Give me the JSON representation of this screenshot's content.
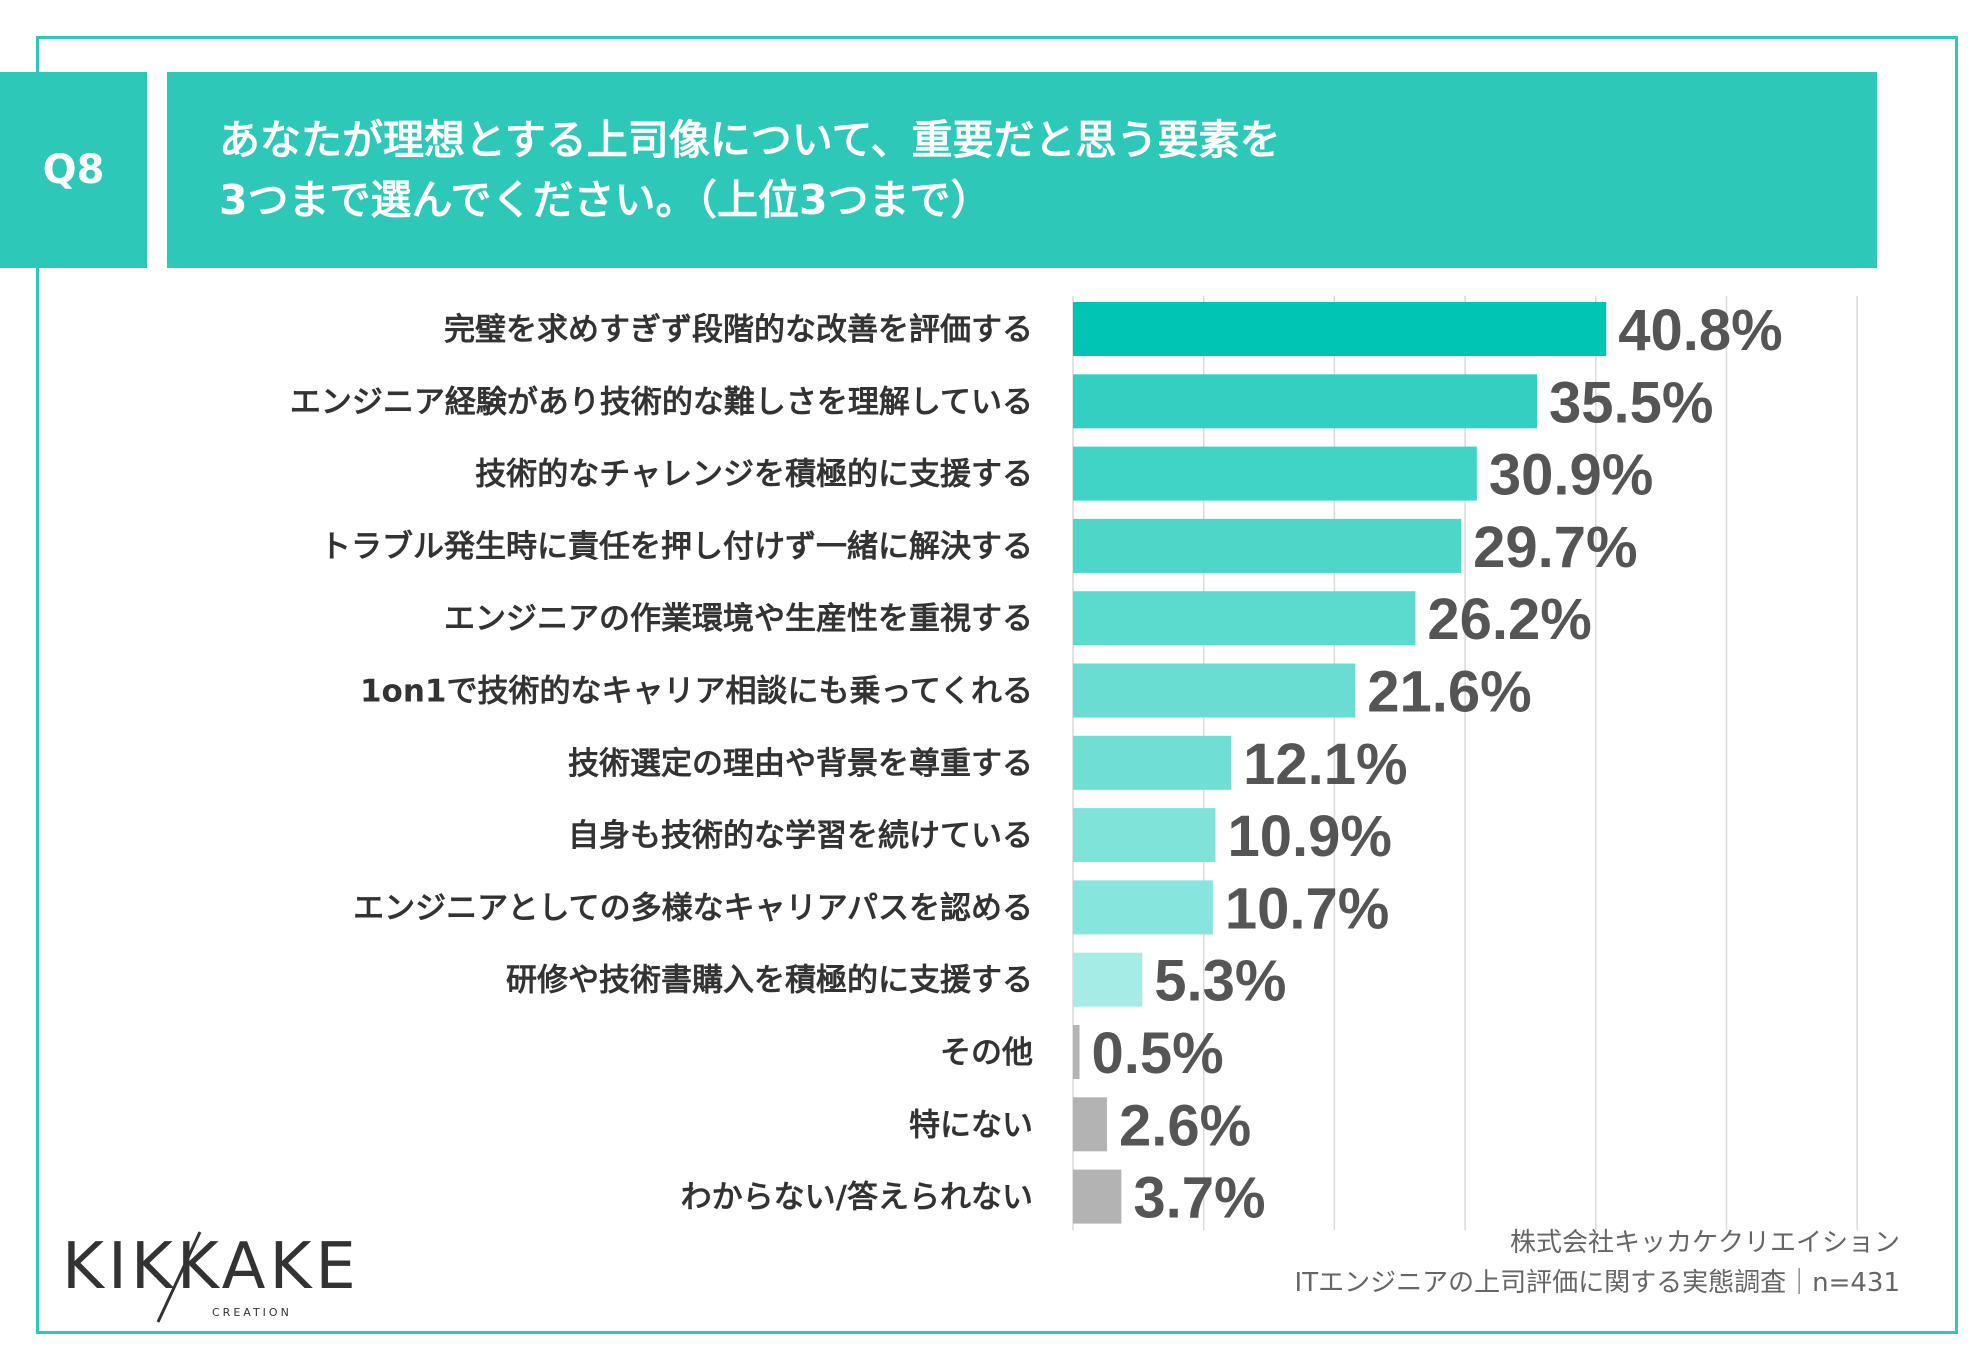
{
  "question": {
    "label": "Q8",
    "title_line1": "あなたが理想とする上司像について、重要だと思う要素を",
    "title_line2": "3つまで選んでください。（上位3つまで）"
  },
  "logo": {
    "text": "KIKKAKE",
    "sub": "CREATION"
  },
  "credit": {
    "company": "株式会社キッカケクリエイション",
    "survey": "ITエンジニアの上司評価に関する実態調査｜n=431"
  },
  "chart_data": {
    "type": "bar",
    "orientation": "horizontal",
    "title": "あなたが理想とする上司像について、重要だと思う要素を3つまで選んでください。（上位3つまで）",
    "unit": "%",
    "xlim": [
      0,
      60
    ],
    "grid": true,
    "categories": [
      "完璧を求めすぎず段階的な改善を評価する",
      "エンジニア経験があり技術的な難しさを理解している",
      "技術的なチャレンジを積極的に支援する",
      "トラブル発生時に責任を押し付けず一緒に解決する",
      "エンジニアの作業環境や生産性を重視する",
      "1on1で技術的なキャリア相談にも乗ってくれる",
      "技術選定の理由や背景を尊重する",
      "自身も技術的な学習を続けている",
      "エンジニアとしての多様なキャリアパスを認める",
      "研修や技術書購入を積極的に支援する",
      "その他",
      "特にない",
      "わからない/答えられない"
    ],
    "values": [
      40.8,
      35.5,
      30.9,
      29.7,
      26.2,
      21.6,
      12.1,
      10.9,
      10.7,
      5.3,
      0.5,
      2.6,
      3.7
    ],
    "labels": [
      "40.8%",
      "35.5%",
      "30.9%",
      "29.7%",
      "26.2%",
      "21.6%",
      "12.1%",
      "10.9%",
      "10.7%",
      "5.3%",
      "0.5%",
      "2.6%",
      "3.7%"
    ],
    "colors": [
      "#00c4b4",
      "#33d0c1",
      "#3fd4c5",
      "#4cd7c9",
      "#5bdbce",
      "#69ddd2",
      "#6fdfd4",
      "#7fe3d9",
      "#86e5dc",
      "#a4ece5",
      "#b3b3b3",
      "#b3b3b3",
      "#b3b3b3"
    ]
  }
}
